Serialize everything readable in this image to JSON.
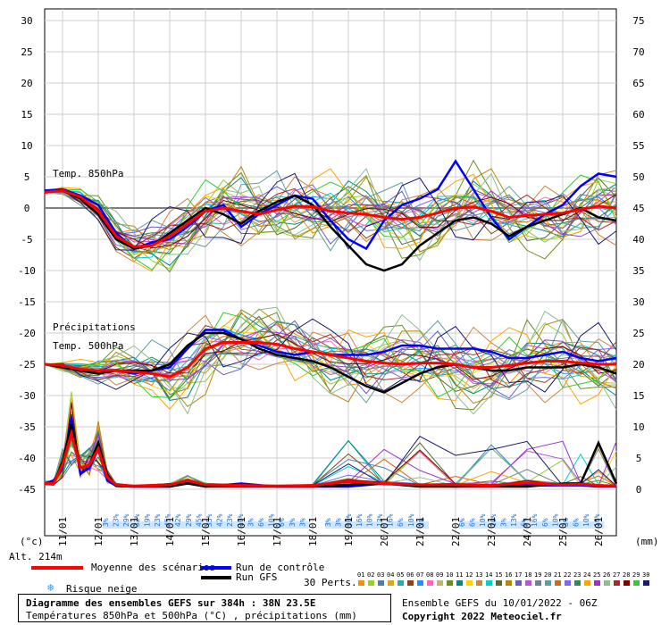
{
  "chart_data": {
    "type": "line",
    "title": "Diagramme des ensembles GEFS sur 384h : 38N 23.5E",
    "subtitle": "Températures 850hPa et 500hPa (°C) , précipitations (mm)",
    "left_axis": {
      "unit": "(°c)",
      "ticks": [
        30,
        25,
        20,
        15,
        10,
        5,
        0,
        -5,
        -10,
        -15,
        -20,
        -25,
        -30,
        -35,
        -40,
        -45
      ],
      "ylim": [
        -45,
        30
      ]
    },
    "right_axis": {
      "unit": "(mm)",
      "ticks": [
        75,
        70,
        65,
        60,
        55,
        50,
        45,
        40,
        35,
        30,
        25,
        20,
        15,
        10,
        5,
        0
      ],
      "ylim": [
        0,
        75
      ]
    },
    "x_dates": [
      "11/01",
      "12/01",
      "13/01",
      "14/01",
      "15/01",
      "16/01",
      "17/01",
      "18/01",
      "19/01",
      "20/01",
      "21/01",
      "22/01",
      "23/01",
      "24/01",
      "25/01",
      "26/01"
    ],
    "x_range_days": [
      10.5,
      26.5
    ],
    "series": [
      {
        "name": "Moyenne des scénarios",
        "color": "#ff0000",
        "kind": "temp850",
        "x": [
          10.5,
          11.0,
          11.5,
          12.0,
          12.5,
          13.0,
          13.5,
          14.0,
          14.5,
          15.0,
          15.5,
          16.0,
          16.5,
          17.0,
          17.5,
          18.0,
          18.5,
          19.0,
          19.5,
          20.0,
          20.5,
          21.0,
          21.5,
          22.0,
          22.5,
          23.0,
          23.5,
          24.0,
          24.5,
          25.0,
          25.5,
          26.0,
          26.5
        ],
        "y": [
          2.5,
          2.8,
          1.8,
          -0.5,
          -4.5,
          -6.2,
          -6.0,
          -4.5,
          -2.5,
          -0.5,
          0.0,
          -0.5,
          -1.0,
          -0.3,
          0.3,
          0.2,
          -0.5,
          -0.8,
          -1.0,
          -1.5,
          -1.8,
          -1.5,
          -0.8,
          0.0,
          0.2,
          -0.5,
          -1.5,
          -1.2,
          -1.0,
          -0.8,
          -0.2,
          0.3,
          0.0
        ]
      },
      {
        "name": "Run de contrôle",
        "color": "#0000ff",
        "kind": "temp850",
        "x": [
          10.5,
          11.0,
          11.5,
          12.0,
          12.5,
          13.0,
          13.5,
          14.0,
          14.5,
          15.0,
          15.5,
          16.0,
          16.5,
          17.0,
          17.5,
          18.0,
          18.5,
          19.0,
          19.5,
          20.0,
          20.5,
          21.0,
          21.5,
          22.0,
          22.5,
          23.0,
          23.5,
          24.0,
          24.5,
          25.0,
          25.5,
          26.0,
          26.5
        ],
        "y": [
          2.8,
          3.0,
          2.0,
          0.5,
          -4.0,
          -6.5,
          -5.5,
          -5.0,
          -3.0,
          -0.5,
          0.5,
          -3.0,
          -1.0,
          0.5,
          2.0,
          1.5,
          -2.0,
          -5.0,
          -6.5,
          -2.0,
          0.5,
          1.5,
          3.0,
          7.5,
          3.0,
          -1.5,
          -5.0,
          -3.0,
          -1.0,
          0.5,
          3.5,
          5.5,
          5.0
        ]
      },
      {
        "name": "Run GFS",
        "color": "#000000",
        "kind": "temp850",
        "x": [
          10.5,
          11.0,
          11.5,
          12.0,
          12.5,
          13.0,
          13.5,
          14.0,
          14.5,
          15.0,
          15.5,
          16.0,
          16.5,
          17.0,
          17.5,
          18.0,
          18.5,
          19.0,
          19.5,
          20.0,
          20.5,
          21.0,
          21.5,
          22.0,
          22.5,
          23.0,
          23.5,
          24.0,
          24.5,
          25.0,
          25.5,
          26.0,
          26.5
        ],
        "y": [
          2.5,
          2.8,
          1.5,
          -1.0,
          -5.0,
          -6.5,
          -6.0,
          -4.0,
          -2.0,
          0.0,
          -1.0,
          -2.5,
          -0.5,
          1.0,
          2.0,
          0.5,
          -3.0,
          -6.0,
          -9.0,
          -10.0,
          -9.0,
          -6.0,
          -4.0,
          -2.0,
          -1.5,
          -2.5,
          -4.5,
          -3.0,
          -2.0,
          -1.0,
          0.0,
          -1.5,
          -2.0
        ]
      },
      {
        "name": "Moyenne des scénarios",
        "color": "#ff0000",
        "kind": "temp500",
        "x": [
          10.5,
          11.0,
          11.5,
          12.0,
          12.5,
          13.0,
          13.5,
          14.0,
          14.5,
          15.0,
          15.5,
          16.0,
          16.5,
          17.0,
          17.5,
          18.0,
          18.5,
          19.0,
          19.5,
          20.0,
          20.5,
          21.0,
          21.5,
          22.0,
          22.5,
          23.0,
          23.5,
          24.0,
          24.5,
          25.0,
          25.5,
          26.0,
          26.5
        ],
        "y": [
          -25.0,
          -25.2,
          -25.8,
          -26.0,
          -26.0,
          -26.2,
          -26.5,
          -27.0,
          -25.5,
          -22.5,
          -21.5,
          -21.5,
          -21.5,
          -21.8,
          -22.5,
          -23.0,
          -23.5,
          -24.0,
          -24.5,
          -24.8,
          -25.0,
          -24.8,
          -24.8,
          -25.0,
          -25.5,
          -25.5,
          -25.2,
          -24.8,
          -24.5,
          -24.5,
          -24.8,
          -25.0,
          -25.0
        ]
      },
      {
        "name": "Run de contrôle",
        "color": "#0000ff",
        "kind": "temp500",
        "x": [
          10.5,
          11.0,
          11.5,
          12.0,
          12.5,
          13.0,
          13.5,
          14.0,
          14.5,
          15.0,
          15.5,
          16.0,
          16.5,
          17.0,
          17.5,
          18.0,
          18.5,
          19.0,
          19.5,
          20.0,
          20.5,
          21.0,
          21.5,
          22.0,
          22.5,
          23.0,
          23.5,
          24.0,
          24.5,
          25.0,
          25.5,
          26.0,
          26.5
        ],
        "y": [
          -25.0,
          -25.3,
          -26.0,
          -26.0,
          -26.0,
          -26.5,
          -26.0,
          -25.5,
          -22.5,
          -19.5,
          -19.5,
          -21.0,
          -22.0,
          -23.0,
          -23.5,
          -23.0,
          -23.5,
          -23.5,
          -23.5,
          -23.0,
          -22.0,
          -22.0,
          -22.5,
          -22.5,
          -22.5,
          -23.0,
          -24.0,
          -24.0,
          -23.5,
          -23.0,
          -24.0,
          -24.5,
          -24.0
        ]
      },
      {
        "name": "Run GFS",
        "color": "#000000",
        "kind": "temp500",
        "x": [
          10.5,
          11.0,
          11.5,
          12.0,
          12.5,
          13.0,
          13.5,
          14.0,
          14.5,
          15.0,
          15.5,
          16.0,
          16.5,
          17.0,
          17.5,
          18.0,
          18.5,
          19.0,
          19.5,
          20.0,
          20.5,
          21.0,
          21.5,
          22.0,
          22.5,
          23.0,
          23.5,
          24.0,
          24.5,
          25.0,
          25.5,
          26.0,
          26.5
        ],
        "y": [
          -25.0,
          -25.5,
          -26.0,
          -26.5,
          -26.0,
          -26.0,
          -26.0,
          -25.0,
          -22.0,
          -20.0,
          -20.0,
          -21.0,
          -22.5,
          -23.5,
          -24.0,
          -24.5,
          -25.5,
          -27.0,
          -28.5,
          -29.5,
          -28.0,
          -26.5,
          -25.5,
          -25.0,
          -25.5,
          -26.0,
          -26.0,
          -25.5,
          -25.5,
          -25.5,
          -25.0,
          -25.5,
          -26.5
        ]
      },
      {
        "name": "Moyenne des scénarios",
        "color": "#ff0000",
        "kind": "precip",
        "x": [
          10.5,
          10.75,
          11.0,
          11.25,
          11.5,
          11.75,
          12.0,
          12.25,
          12.5,
          13.0,
          14.0,
          14.5,
          15.0,
          16.0,
          17.0,
          18.0,
          19.0,
          20.0,
          21.0,
          22.0,
          23.0,
          24.0,
          25.0,
          25.5,
          26.0,
          26.5
        ],
        "y": [
          0.5,
          0.5,
          3.5,
          8.5,
          3.0,
          3.5,
          6.0,
          1.5,
          0.3,
          0.1,
          0.3,
          1.0,
          0.3,
          0.2,
          0.1,
          0.2,
          0.8,
          0.5,
          0.3,
          0.3,
          0.2,
          0.6,
          0.3,
          0.4,
          0.2,
          0.1
        ]
      },
      {
        "name": "Run de contrôle",
        "color": "#0000ff",
        "kind": "precip",
        "x": [
          10.5,
          10.75,
          11.0,
          11.25,
          11.5,
          11.75,
          12.0,
          12.25,
          12.5,
          13.0,
          14.0,
          14.5,
          15.0,
          16.0,
          17.0,
          18.0,
          19.0,
          20.0,
          21.0,
          22.0,
          23.0,
          24.0,
          25.0,
          25.5,
          26.0,
          26.5
        ],
        "y": [
          0.5,
          1.0,
          3.0,
          11.0,
          2.0,
          3.0,
          6.0,
          1.0,
          0.1,
          0.0,
          0.0,
          1.0,
          0.0,
          0.5,
          0.0,
          0.0,
          0.0,
          0.5,
          0.3,
          0.0,
          0.2,
          0.2,
          0.2,
          0.2,
          0.0,
          0.0
        ]
      },
      {
        "name": "Run GFS",
        "color": "#000000",
        "kind": "precip",
        "x": [
          10.5,
          10.75,
          11.0,
          11.25,
          11.5,
          11.75,
          12.0,
          12.25,
          12.5,
          13.0,
          14.0,
          14.5,
          15.0,
          16.0,
          17.0,
          18.0,
          19.0,
          20.0,
          21.0,
          22.0,
          23.0,
          24.0,
          25.0,
          25.5,
          26.0,
          26.5
        ],
        "y": [
          0.5,
          0.5,
          4.0,
          10.0,
          3.0,
          3.5,
          7.0,
          2.0,
          0.1,
          0.0,
          0.0,
          0.5,
          0.0,
          0.0,
          0.0,
          0.0,
          0.3,
          0.5,
          0.0,
          0.0,
          0.0,
          0.0,
          0.5,
          0.5,
          7.0,
          0.5
        ]
      }
    ],
    "grid": true
  },
  "labels": {
    "temp850": "Temp. 850hPa",
    "precip": "Précipitations",
    "temp500": "Temp. 500hPa",
    "unit_left": "(°c)",
    "unit_right": "(mm)",
    "altitude": "Alt. 214m"
  },
  "snow_risk": {
    "block1": [
      "3%",
      "23%",
      "29%",
      "32%",
      "19%",
      "23%",
      "45%",
      "42%",
      "29%",
      "45%",
      "35%",
      "42%",
      "23%",
      "10%",
      "3%",
      "6%",
      "10%",
      "6%",
      "3%",
      "3%"
    ],
    "block2": [
      "3%",
      "3%",
      "10%",
      "16%",
      "10%",
      "13%",
      "16%",
      "6%",
      "10%",
      "3%"
    ],
    "block3": [
      "6%",
      "6%",
      "10%",
      "10%",
      "3%",
      "13%",
      "6%",
      "16%",
      "6%",
      "10%",
      "3%",
      "6%",
      "10%",
      "16%"
    ]
  },
  "legend": {
    "mean": "Moyenne des scénarios",
    "control": "Run de contrôle",
    "gfs": "Run GFS",
    "perts": "30 Perts.",
    "snow": "Risque neige",
    "colors": {
      "mean": "#ff0000",
      "control": "#0000ff",
      "gfs": "#000000"
    },
    "pert_numbers": [
      "01",
      "02",
      "03",
      "04",
      "05",
      "06",
      "07",
      "08",
      "09",
      "10",
      "11",
      "12",
      "13",
      "14",
      "15",
      "16",
      "17",
      "18",
      "19",
      "20",
      "21",
      "22",
      "23",
      "24",
      "25",
      "26",
      "27",
      "28",
      "29",
      "30"
    ],
    "pert_colors": [
      "#ff8c00",
      "#9acd32",
      "#4682b4",
      "#daa520",
      "#20b2aa",
      "#8b4513",
      "#1e90ff",
      "#ff69b4",
      "#bdb76b",
      "#6b8e23",
      "#008b8b",
      "#ffd700",
      "#cd853f",
      "#00ced1",
      "#556b2f",
      "#b8860b",
      "#6a5acd",
      "#ba55d3",
      "#708090",
      "#5f9ea0",
      "#d2691e",
      "#7b68ee",
      "#2e8b57",
      "#ffa500",
      "#9932cc",
      "#8fbc8f",
      "#a52a2a",
      "#800000",
      "#32cd32",
      "#191970"
    ]
  },
  "footer": {
    "title": "Diagramme des ensembles GEFS sur 384h : 38N 23.5E",
    "subtitle": "Températures 850hPa et 500hPa (°C) , précipitations (mm)",
    "ensemble": "Ensemble GEFS du 10/01/2022 - 06Z",
    "copyright": "Copyright 2022 Meteociel.fr"
  }
}
